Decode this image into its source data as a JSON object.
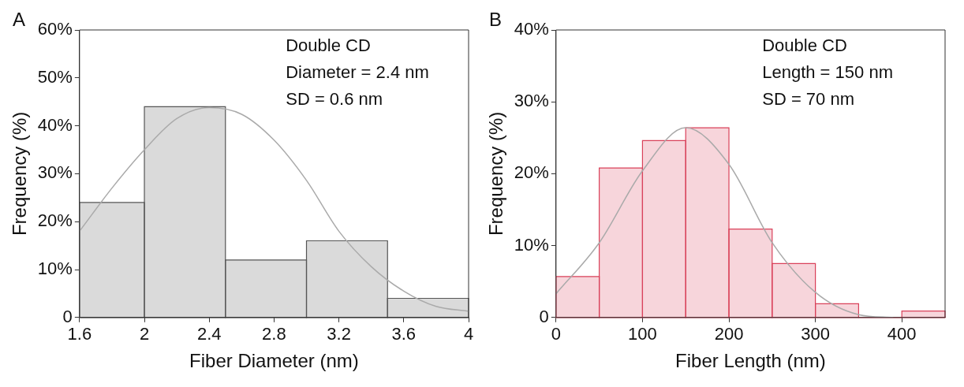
{
  "chart_data": [
    {
      "type": "histogram",
      "title": "A",
      "xlabel": "Fiber Diameter (nm)",
      "ylabel": "Frequency (%)",
      "color": "#555555",
      "bins": [
        1.6,
        2,
        2.5,
        3,
        3.5,
        4
      ],
      "values": [
        24,
        44,
        12,
        16,
        4
      ],
      "xlim": [
        1.6,
        4
      ],
      "xticks": [
        1.6,
        2,
        2.4,
        2.8,
        3.2,
        3.6,
        4
      ],
      "ylim": [
        0,
        60
      ],
      "yticks": [
        {
          "value": 0,
          "label": "0"
        },
        {
          "value": 10,
          "label": "10%"
        },
        {
          "value": 20,
          "label": "20%"
        },
        {
          "value": 30,
          "label": "30%"
        },
        {
          "value": 40,
          "label": "40%"
        },
        {
          "value": 50,
          "label": "50%"
        },
        {
          "value": 60,
          "label": "60%"
        }
      ],
      "series": [
        {
          "type": "line",
          "color": "#aaaaaa",
          "x": [
            1.6,
            1.8,
            2.0,
            2.2,
            2.4,
            2.6,
            2.8,
            3.0,
            3.2,
            3.4,
            3.6,
            3.8,
            4.0
          ],
          "values": [
            18,
            27,
            35,
            41.5,
            43.8,
            42.4,
            37,
            28.6,
            18,
            10.6,
            5.5,
            2.3,
            1.3
          ]
        }
      ],
      "annotations": [
        "Double CD",
        "Diameter = 2.4 nm",
        "SD = 0.6 nm"
      ],
      "grid": false
    },
    {
      "type": "histogram",
      "title": "B",
      "xlabel": "Fiber Length (nm)",
      "ylabel": "Frequency (%)",
      "color": "#d9415a",
      "bins": [
        0,
        50,
        100,
        150,
        200,
        250,
        300,
        350,
        400,
        450
      ],
      "values": [
        5.7,
        20.8,
        24.6,
        26.4,
        12.3,
        7.5,
        1.9,
        0,
        0.9
      ],
      "xlim": [
        0,
        450
      ],
      "xticks": [
        0,
        100,
        200,
        300,
        400
      ],
      "ylim": [
        0,
        40
      ],
      "yticks": [
        {
          "value": 0,
          "label": "0"
        },
        {
          "value": 10,
          "label": "10%"
        },
        {
          "value": 20,
          "label": "20%"
        },
        {
          "value": 30,
          "label": "30%"
        },
        {
          "value": 40,
          "label": "40%"
        }
      ],
      "series": [
        {
          "type": "line",
          "color": "#aaaaaa",
          "x": [
            0,
            50,
            100,
            150,
            200,
            250,
            300,
            350,
            390
          ],
          "values": [
            3.3,
            10.4,
            20.4,
            26.4,
            21.3,
            10.4,
            3.5,
            0.4,
            0
          ]
        }
      ],
      "annotations": [
        "Double CD",
        "Length = 150 nm",
        "SD = 70 nm"
      ],
      "grid": false
    }
  ]
}
